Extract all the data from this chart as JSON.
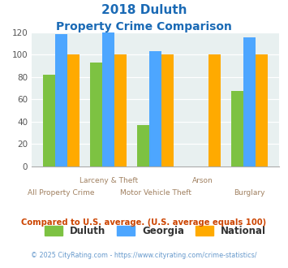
{
  "title_line1": "2018 Duluth",
  "title_line2": "Property Crime Comparison",
  "categories": [
    "All Property Crime",
    "Larceny & Theft",
    "Motor Vehicle Theft",
    "Arson",
    "Burglary"
  ],
  "duluth": [
    82,
    93,
    37,
    0,
    67
  ],
  "georgia": [
    118,
    120,
    103,
    0,
    115
  ],
  "national": [
    100,
    100,
    100,
    100,
    100
  ],
  "color_duluth": "#7dc242",
  "color_georgia": "#4da6ff",
  "color_national": "#ffaa00",
  "bg_color": "#e8f0f0",
  "title_color": "#1a6ab5",
  "xlabel_color": "#a08060",
  "ylabel_max": 120,
  "ylabel_min": 0,
  "ylabel_step": 20,
  "footnote1": "Compared to U.S. average. (U.S. average equals 100)",
  "footnote2": "© 2025 CityRating.com - https://www.cityrating.com/crime-statistics/",
  "footnote1_color": "#cc4400",
  "footnote2_color": "#6699cc",
  "legend_labels": [
    "Duluth",
    "Georgia",
    "National"
  ],
  "bar_width": 0.26
}
